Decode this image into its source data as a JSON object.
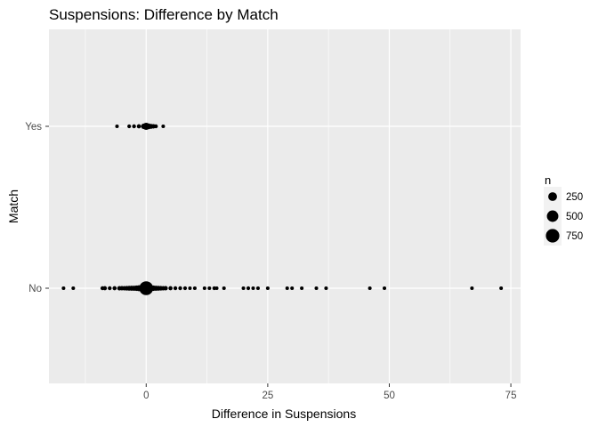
{
  "chart_data": {
    "type": "scatter",
    "title": "Suspensions: Difference by Match",
    "xlabel": "Difference in Suspensions",
    "ylabel": "Match",
    "xlim": [
      -20,
      77
    ],
    "x_ticks": [
      0,
      25,
      50,
      75
    ],
    "x_tick_labels": [
      "0",
      "25",
      "50",
      "75"
    ],
    "categories": [
      "No",
      "Yes"
    ],
    "grid": true,
    "legend": {
      "title": "n",
      "position": "right",
      "entries": [
        {
          "label": "250",
          "value": 250
        },
        {
          "label": "500",
          "value": 500
        },
        {
          "label": "750",
          "value": 750
        }
      ]
    },
    "colors": {
      "point": "#000000",
      "panel": "#ebebeb",
      "grid": "#ffffff"
    },
    "points": [
      {
        "x": -6,
        "y": "Yes",
        "n": 10
      },
      {
        "x": -3.5,
        "y": "Yes",
        "n": 12
      },
      {
        "x": -2.5,
        "y": "Yes",
        "n": 15
      },
      {
        "x": -1.5,
        "y": "Yes",
        "n": 20
      },
      {
        "x": -0.5,
        "y": "Yes",
        "n": 60
      },
      {
        "x": 0,
        "y": "Yes",
        "n": 140
      },
      {
        "x": 0.5,
        "y": "Yes",
        "n": 70
      },
      {
        "x": 1,
        "y": "Yes",
        "n": 40
      },
      {
        "x": 1.5,
        "y": "Yes",
        "n": 25
      },
      {
        "x": 2,
        "y": "Yes",
        "n": 15
      },
      {
        "x": 3.5,
        "y": "Yes",
        "n": 10
      },
      {
        "x": -17,
        "y": "No",
        "n": 10
      },
      {
        "x": -15,
        "y": "No",
        "n": 10
      },
      {
        "x": -9,
        "y": "No",
        "n": 15
      },
      {
        "x": -8.5,
        "y": "No",
        "n": 20
      },
      {
        "x": -7.5,
        "y": "No",
        "n": 15
      },
      {
        "x": -6.5,
        "y": "No",
        "n": 20
      },
      {
        "x": -5.5,
        "y": "No",
        "n": 30
      },
      {
        "x": -5,
        "y": "No",
        "n": 25
      },
      {
        "x": -4.5,
        "y": "No",
        "n": 30
      },
      {
        "x": -4,
        "y": "No",
        "n": 35
      },
      {
        "x": -3.5,
        "y": "No",
        "n": 40
      },
      {
        "x": -3,
        "y": "No",
        "n": 45
      },
      {
        "x": -2.5,
        "y": "No",
        "n": 50
      },
      {
        "x": -2,
        "y": "No",
        "n": 60
      },
      {
        "x": -1.5,
        "y": "No",
        "n": 80
      },
      {
        "x": -1,
        "y": "No",
        "n": 100
      },
      {
        "x": -0.5,
        "y": "No",
        "n": 150
      },
      {
        "x": 0,
        "y": "No",
        "n": 800
      },
      {
        "x": 0.5,
        "y": "No",
        "n": 150
      },
      {
        "x": 1,
        "y": "No",
        "n": 90
      },
      {
        "x": 1.5,
        "y": "No",
        "n": 60
      },
      {
        "x": 2,
        "y": "No",
        "n": 50
      },
      {
        "x": 2.5,
        "y": "No",
        "n": 40
      },
      {
        "x": 3,
        "y": "No",
        "n": 35
      },
      {
        "x": 3.5,
        "y": "No",
        "n": 30
      },
      {
        "x": 4,
        "y": "No",
        "n": 25
      },
      {
        "x": 5,
        "y": "No",
        "n": 20
      },
      {
        "x": 6,
        "y": "No",
        "n": 15
      },
      {
        "x": 7,
        "y": "No",
        "n": 15
      },
      {
        "x": 8,
        "y": "No",
        "n": 12
      },
      {
        "x": 9,
        "y": "No",
        "n": 10
      },
      {
        "x": 10,
        "y": "No",
        "n": 10
      },
      {
        "x": 12,
        "y": "No",
        "n": 10
      },
      {
        "x": 13,
        "y": "No",
        "n": 10
      },
      {
        "x": 14,
        "y": "No",
        "n": 12
      },
      {
        "x": 14.5,
        "y": "No",
        "n": 10
      },
      {
        "x": 16,
        "y": "No",
        "n": 10
      },
      {
        "x": 20,
        "y": "No",
        "n": 10
      },
      {
        "x": 21,
        "y": "No",
        "n": 12
      },
      {
        "x": 22,
        "y": "No",
        "n": 10
      },
      {
        "x": 23,
        "y": "No",
        "n": 10
      },
      {
        "x": 25,
        "y": "No",
        "n": 10
      },
      {
        "x": 29,
        "y": "No",
        "n": 10
      },
      {
        "x": 30,
        "y": "No",
        "n": 10
      },
      {
        "x": 32,
        "y": "No",
        "n": 10
      },
      {
        "x": 35,
        "y": "No",
        "n": 10
      },
      {
        "x": 37,
        "y": "No",
        "n": 10
      },
      {
        "x": 46,
        "y": "No",
        "n": 10
      },
      {
        "x": 49,
        "y": "No",
        "n": 10
      },
      {
        "x": 67,
        "y": "No",
        "n": 10
      },
      {
        "x": 73,
        "y": "No",
        "n": 10
      }
    ]
  }
}
